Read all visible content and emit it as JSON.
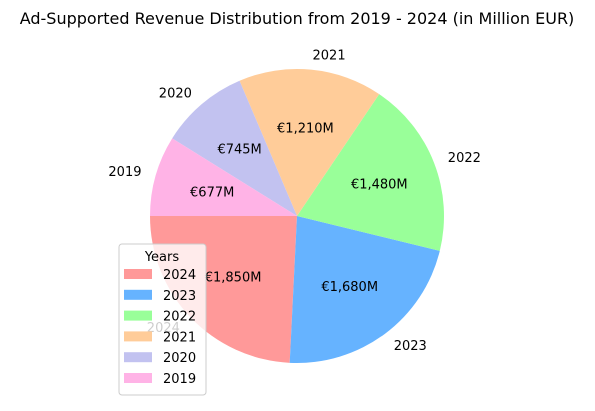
{
  "chart_data": {
    "type": "pie",
    "title": "Ad-Supported Revenue Distribution from 2019 - 2024 (in Million EUR)",
    "legend_title": "Years",
    "legend_position": "lower-left",
    "start_angle_deg": 180,
    "direction": "counterclockwise",
    "slices": [
      {
        "label": "2024",
        "value": 1850,
        "value_label": "€1,850M",
        "color": "#ff9999"
      },
      {
        "label": "2023",
        "value": 1680,
        "value_label": "€1,680M",
        "color": "#66b3ff"
      },
      {
        "label": "2022",
        "value": 1480,
        "value_label": "€1,480M",
        "color": "#99ff99"
      },
      {
        "label": "2021",
        "value": 1210,
        "value_label": "€1,210M",
        "color": "#ffcc99"
      },
      {
        "label": "2020",
        "value": 745,
        "value_label": "€745M",
        "color": "#c2c2f0"
      },
      {
        "label": "2019",
        "value": 677,
        "value_label": "€677M",
        "color": "#ffb3e6"
      }
    ],
    "legend_order": [
      "2024",
      "2023",
      "2022",
      "2021",
      "2020",
      "2019"
    ]
  }
}
